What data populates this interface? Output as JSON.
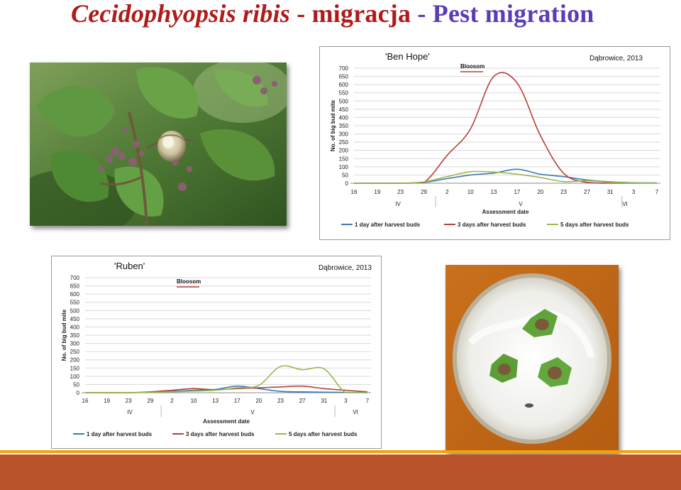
{
  "slide": {
    "title_species": "Cecidophyopsis ribis",
    "title_sep1": " - ",
    "title_pl": "migracja",
    "title_sep2": "  - ",
    "title_en": "Pest migration"
  },
  "colors": {
    "title_red": "#b01a1a",
    "title_purple": "#5a3db5",
    "series_1": "#3f78b5",
    "series_2": "#b5413b",
    "series_3": "#98b94f",
    "footer_bar": "#b8532b",
    "footer_strip": "#f2a20c"
  },
  "photos": {
    "left": "photo-currant-plant-with-big-buds",
    "right": "photo-jar-with-leaves-and-buds"
  },
  "chart_data": [
    {
      "type": "line",
      "title": "'Ben Hope'",
      "subtitle": "Dąbrowice, 2013",
      "annotation": "Bloosom",
      "xlabel": "Assessment date",
      "ylabel": "No. of big bud mite",
      "ylim": [
        0,
        700
      ],
      "yticks": [
        0,
        50,
        100,
        150,
        200,
        250,
        300,
        350,
        400,
        450,
        500,
        550,
        600,
        650,
        700
      ],
      "x": [
        "16",
        "19",
        "23",
        "29",
        "2",
        "10",
        "13",
        "17",
        "20",
        "23",
        "27",
        "31",
        "3",
        "7"
      ],
      "month_labels": [
        "IV",
        "V",
        "VI"
      ],
      "grid": true,
      "legend": "bottom",
      "series": [
        {
          "name": "1 day after harvest buds",
          "values": [
            0,
            0,
            0,
            5,
            28,
            50,
            62,
            85,
            55,
            40,
            20,
            8,
            3,
            2
          ]
        },
        {
          "name": "3 days after harvest buds",
          "values": [
            0,
            0,
            0,
            5,
            170,
            330,
            650,
            610,
            290,
            60,
            5,
            0,
            0,
            0
          ]
        },
        {
          "name": "5 days after harvest buds",
          "values": [
            0,
            0,
            0,
            8,
            40,
            70,
            68,
            55,
            35,
            10,
            15,
            5,
            2,
            1
          ]
        }
      ]
    },
    {
      "type": "line",
      "title": "'Ruben'",
      "subtitle": "Dąbrowice, 2013",
      "annotation": "Bloosom",
      "xlabel": "Assessment date",
      "ylabel": "No. of big bud mite",
      "ylim": [
        0,
        700
      ],
      "yticks": [
        0,
        50,
        100,
        150,
        200,
        250,
        300,
        350,
        400,
        450,
        500,
        550,
        600,
        650,
        700
      ],
      "x": [
        "16",
        "19",
        "23",
        "29",
        "2",
        "10",
        "13",
        "17",
        "20",
        "23",
        "27",
        "31",
        "3",
        "7"
      ],
      "month_labels": [
        "IV",
        "V",
        "VI"
      ],
      "grid": true,
      "legend": "bottom",
      "series": [
        {
          "name": "1 day after harvest buds",
          "values": [
            0,
            0,
            0,
            2,
            8,
            15,
            20,
            40,
            25,
            8,
            5,
            3,
            2,
            1
          ]
        },
        {
          "name": "3 days after harvest buds",
          "values": [
            0,
            0,
            0,
            5,
            15,
            25,
            18,
            25,
            30,
            35,
            40,
            25,
            15,
            5
          ]
        },
        {
          "name": "5 days after harvest buds",
          "values": [
            0,
            0,
            0,
            2,
            5,
            10,
            15,
            30,
            45,
            160,
            140,
            145,
            0,
            0
          ]
        }
      ]
    }
  ]
}
